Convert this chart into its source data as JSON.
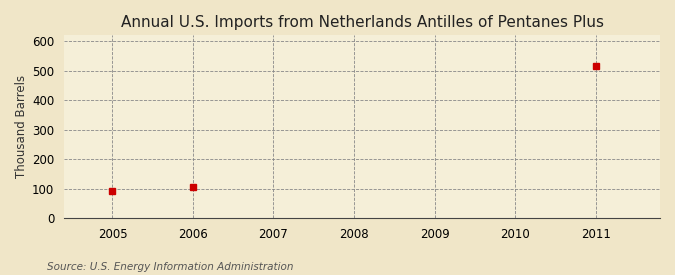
{
  "title": "Annual U.S. Imports from Netherlands Antilles of Pentanes Plus",
  "ylabel": "Thousand Barrels",
  "source": "Source: U.S. Energy Information Administration",
  "outer_bg_color": "#F0E6C8",
  "plot_bg_color": "#F5EFD8",
  "data_x": [
    2005,
    2006,
    2011
  ],
  "data_y": [
    91,
    105,
    515
  ],
  "marker_color": "#CC0000",
  "marker_style": "s",
  "marker_size": 4,
  "xlim": [
    2004.4,
    2011.8
  ],
  "ylim": [
    0,
    620
  ],
  "xticks": [
    2005,
    2006,
    2007,
    2008,
    2009,
    2010,
    2011
  ],
  "yticks": [
    0,
    100,
    200,
    300,
    400,
    500,
    600
  ],
  "grid_color": "#888888",
  "grid_linestyle": "--",
  "grid_linewidth": 0.6,
  "vgrid_linestyle": "--",
  "title_fontsize": 11,
  "axis_label_fontsize": 8.5,
  "tick_fontsize": 8.5,
  "source_fontsize": 7.5
}
